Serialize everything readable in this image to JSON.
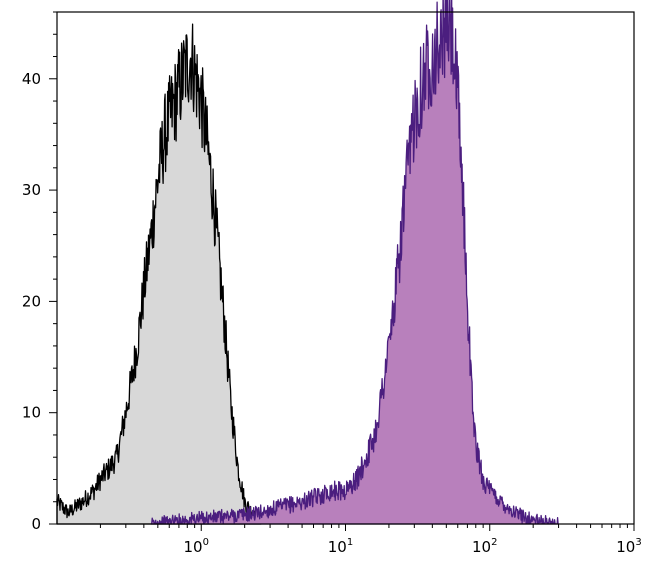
{
  "chart_data": {
    "type": "area",
    "title": "",
    "xlabel": "",
    "ylabel": "",
    "x_scale": "log",
    "xlim": [
      0.1,
      1000
    ],
    "ylim": [
      0,
      46
    ],
    "grid": false,
    "legend": "none",
    "y_ticks": [
      "0",
      "10",
      "20",
      "30",
      "40"
    ],
    "y_tick_values": [
      0,
      10,
      20,
      30,
      40
    ],
    "x_ticks": [
      {
        "base": "10",
        "exp": "0",
        "value": 1
      },
      {
        "base": "10",
        "exp": "1",
        "value": 10
      },
      {
        "base": "10",
        "exp": "2",
        "value": 100
      },
      {
        "base": "10",
        "exp": "3",
        "value": 1000
      }
    ],
    "series": [
      {
        "fill": "#d8d8d8",
        "stroke": "#000000",
        "points": [
          [
            0.1,
            2
          ],
          [
            0.12,
            1
          ],
          [
            0.15,
            2
          ],
          [
            0.18,
            3
          ],
          [
            0.2,
            4
          ],
          [
            0.23,
            5
          ],
          [
            0.26,
            6
          ],
          [
            0.3,
            10
          ],
          [
            0.33,
            13
          ],
          [
            0.36,
            16
          ],
          [
            0.4,
            21
          ],
          [
            0.45,
            26
          ],
          [
            0.5,
            31
          ],
          [
            0.56,
            35
          ],
          [
            0.62,
            37
          ],
          [
            0.7,
            39
          ],
          [
            0.78,
            41
          ],
          [
            0.85,
            42
          ],
          [
            0.92,
            40
          ],
          [
            1.0,
            38
          ],
          [
            1.1,
            34
          ],
          [
            1.2,
            30
          ],
          [
            1.3,
            25
          ],
          [
            1.45,
            18
          ],
          [
            1.6,
            11
          ],
          [
            1.8,
            5
          ],
          [
            2.0,
            2
          ],
          [
            2.3,
            0.8
          ],
          [
            2.6,
            0
          ]
        ]
      },
      {
        "fill": "#b880bc",
        "stroke": "#4b1e7f",
        "points": [
          [
            0.45,
            0
          ],
          [
            0.8,
            0.4
          ],
          [
            1.5,
            0.7
          ],
          [
            2.5,
            1
          ],
          [
            3.5,
            1.5
          ],
          [
            5,
            2
          ],
          [
            6.5,
            2.5
          ],
          [
            8,
            3
          ],
          [
            10,
            3
          ],
          [
            12,
            4
          ],
          [
            14,
            6
          ],
          [
            16,
            8
          ],
          [
            18,
            12
          ],
          [
            20,
            16
          ],
          [
            22,
            20
          ],
          [
            24,
            25
          ],
          [
            26,
            30
          ],
          [
            28,
            33
          ],
          [
            30,
            37
          ],
          [
            33,
            39
          ],
          [
            36,
            41
          ],
          [
            40,
            42
          ],
          [
            45,
            43
          ],
          [
            50,
            45
          ],
          [
            55,
            44
          ],
          [
            60,
            38
          ],
          [
            65,
            30
          ],
          [
            70,
            20
          ],
          [
            75,
            12
          ],
          [
            80,
            7
          ],
          [
            90,
            4
          ],
          [
            100,
            3
          ],
          [
            120,
            2
          ],
          [
            150,
            1
          ],
          [
            180,
            0.6
          ],
          [
            220,
            0.2
          ],
          [
            300,
            0
          ]
        ]
      }
    ]
  }
}
